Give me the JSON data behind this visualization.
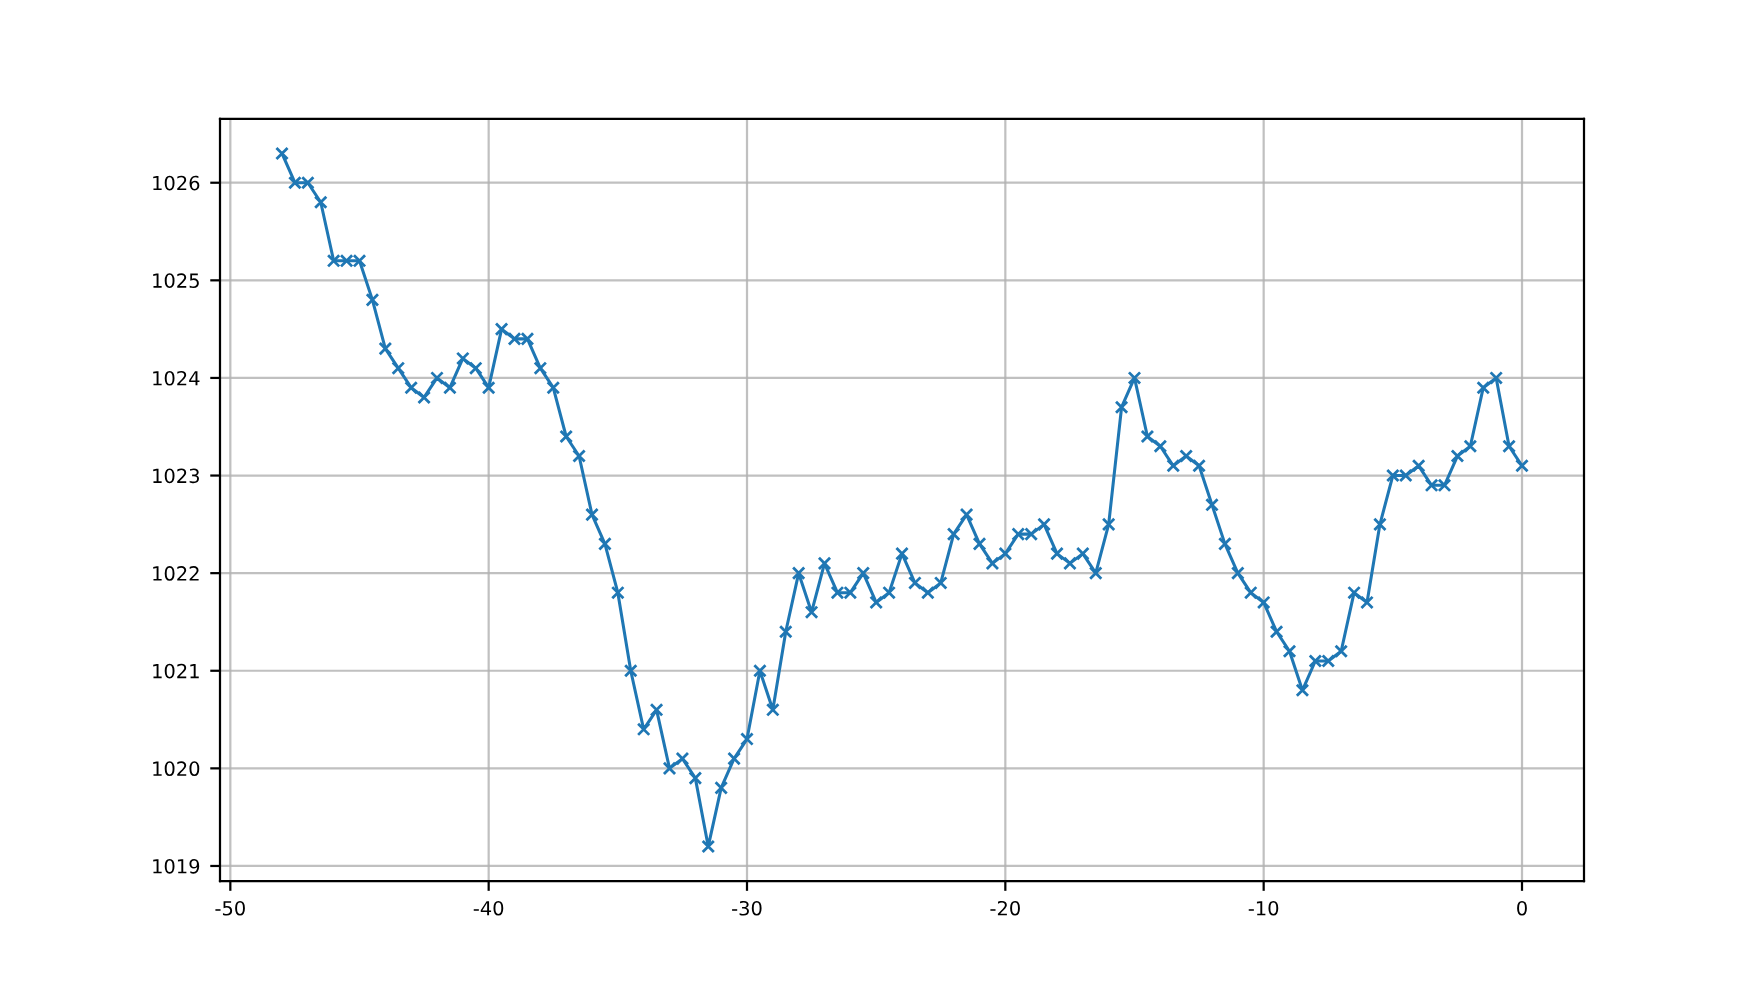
{
  "chart_data": {
    "type": "line",
    "x": [
      -48,
      -47.5,
      -47,
      -46.5,
      -46,
      -45.5,
      -45,
      -44.5,
      -44,
      -43.5,
      -43,
      -42.5,
      -42,
      -41.5,
      -41,
      -40.5,
      -40,
      -39.5,
      -39,
      -38.5,
      -38,
      -37.5,
      -37,
      -36.5,
      -36,
      -35.5,
      -35,
      -34.5,
      -34,
      -33.5,
      -33,
      -32.5,
      -32,
      -31.5,
      -31,
      -30.5,
      -30,
      -29.5,
      -29,
      -28.5,
      -28,
      -27.5,
      -27,
      -26.5,
      -26,
      -25.5,
      -25,
      -24.5,
      -24,
      -23.5,
      -23,
      -22.5,
      -22,
      -21.5,
      -21,
      -20.5,
      -20,
      -19.5,
      -19,
      -18.5,
      -18,
      -17.5,
      -17,
      -16.5,
      -16,
      -15.5,
      -15,
      -14.5,
      -14,
      -13.5,
      -13,
      -12.5,
      -12,
      -11.5,
      -11,
      -10.5,
      -10,
      -9.5,
      -9,
      -8.5,
      -8,
      -7.5,
      -7,
      -6.5,
      -6,
      -5.5,
      -5,
      -4.5,
      -4,
      -3.5,
      -3,
      -2.5,
      -2,
      -1.5,
      -1,
      -0.5,
      0
    ],
    "series": [
      {
        "color": "#1f77b4",
        "values": [
          1026.3,
          1026.0,
          1026.0,
          1025.8,
          1025.2,
          1025.2,
          1025.2,
          1024.8,
          1024.3,
          1024.1,
          1023.9,
          1023.8,
          1024.0,
          1023.9,
          1024.2,
          1024.1,
          1023.9,
          1024.5,
          1024.4,
          1024.4,
          1024.1,
          1023.9,
          1023.4,
          1023.2,
          1022.6,
          1022.3,
          1021.8,
          1021.0,
          1020.4,
          1020.6,
          1020.0,
          1020.1,
          1019.9,
          1019.2,
          1019.8,
          1020.1,
          1020.3,
          1021.0,
          1020.6,
          1021.4,
          1022.0,
          1021.6,
          1022.1,
          1021.8,
          1021.8,
          1022.0,
          1021.7,
          1021.8,
          1022.2,
          1021.9,
          1021.8,
          1021.9,
          1022.4,
          1022.6,
          1022.3,
          1022.1,
          1022.2,
          1022.4,
          1022.4,
          1022.5,
          1022.2,
          1022.1,
          1022.2,
          1022.0,
          1022.5,
          1023.7,
          1024.0,
          1023.4,
          1023.3,
          1023.1,
          1023.2,
          1023.1,
          1022.7,
          1022.3,
          1022.0,
          1021.8,
          1021.7,
          1021.4,
          1021.2,
          1020.8,
          1021.1,
          1021.1,
          1021.2,
          1021.8,
          1021.7,
          1022.5,
          1023.0,
          1023.0,
          1023.1,
          1022.9,
          1022.9,
          1023.2,
          1023.3,
          1023.9,
          1024.0,
          1023.3,
          1023.1
        ]
      }
    ],
    "xlim": [
      -50.4,
      2.4
    ],
    "ylim": [
      1018.845,
      1026.655
    ],
    "xticks": [
      -50,
      -40,
      -30,
      -20,
      -10,
      0
    ],
    "yticks": [
      1019,
      1020,
      1021,
      1022,
      1023,
      1024,
      1025,
      1026
    ],
    "grid": true,
    "marker": "cross",
    "line_style": "solid"
  }
}
